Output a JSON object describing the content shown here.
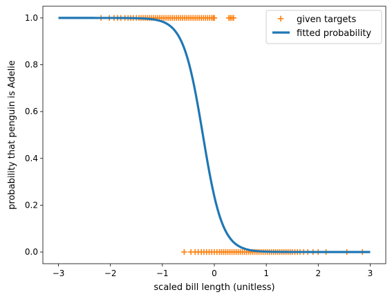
{
  "chart_data": {
    "type": "scatter",
    "title": "",
    "xlabel": "scaled bill length (unitless)",
    "ylabel": "probability that penguin is Adelie",
    "xlim": [
      -3.3,
      3.3
    ],
    "ylim": [
      -0.05,
      1.05
    ],
    "xticks": [
      -3,
      -2,
      -1,
      0,
      1,
      2,
      3
    ],
    "xtick_labels": [
      "−3",
      "−2",
      "−1",
      "0",
      "1",
      "2",
      "3"
    ],
    "yticks": [
      0.0,
      0.2,
      0.4,
      0.6,
      0.8,
      1.0
    ],
    "ytick_labels": [
      "0.0",
      "0.2",
      "0.4",
      "0.6",
      "0.8",
      "1.0"
    ],
    "grid": false,
    "legend_position": "upper right",
    "series": [
      {
        "name": "given targets",
        "kind": "scatter",
        "marker": "+",
        "color": "#ff7f0e",
        "y": 1,
        "x": [
          -2.18,
          -2.02,
          -1.93,
          -1.86,
          -1.8,
          -1.72,
          -1.66,
          -1.61,
          -1.56,
          -1.5,
          -1.45,
          -1.41,
          -1.37,
          -1.33,
          -1.29,
          -1.25,
          -1.21,
          -1.17,
          -1.13,
          -1.09,
          -1.05,
          -1.01,
          -0.97,
          -0.93,
          -0.89,
          -0.85,
          -0.81,
          -0.77,
          -0.73,
          -0.69,
          -0.65,
          -0.61,
          -0.57,
          -0.53,
          -0.49,
          -0.45,
          -0.41,
          -0.37,
          -0.33,
          -0.29,
          -0.25,
          -0.21,
          -0.17,
          -0.13,
          -0.09,
          -0.05,
          -0.02,
          0.0,
          0.28,
          0.31,
          0.34,
          0.37
        ]
      },
      {
        "name": "given targets",
        "kind": "scatter",
        "marker": "+",
        "color": "#ff7f0e",
        "y": 0,
        "x": [
          -0.58,
          -0.45,
          -0.37,
          -0.31,
          -0.25,
          -0.2,
          -0.15,
          -0.1,
          -0.05,
          0.0,
          0.05,
          0.1,
          0.14,
          0.18,
          0.22,
          0.26,
          0.3,
          0.34,
          0.38,
          0.42,
          0.46,
          0.5,
          0.54,
          0.58,
          0.62,
          0.66,
          0.7,
          0.74,
          0.78,
          0.82,
          0.86,
          0.9,
          0.94,
          0.98,
          1.02,
          1.06,
          1.1,
          1.14,
          1.18,
          1.22,
          1.26,
          1.3,
          1.34,
          1.38,
          1.42,
          1.46,
          1.5,
          1.55,
          1.6,
          1.65,
          1.72,
          1.8,
          1.9,
          2.0,
          2.15,
          2.55,
          2.85
        ]
      },
      {
        "name": "fitted probability",
        "kind": "line",
        "color": "#1f77b4",
        "function": "logistic",
        "x_range": [
          -3,
          3
        ],
        "center": -0.22,
        "steepness": -5.3
      }
    ],
    "legend": [
      {
        "label": "given targets",
        "marker": "+",
        "color": "#ff7f0e"
      },
      {
        "label": "fitted probability",
        "marker": "line",
        "color": "#1f77b4"
      }
    ]
  }
}
